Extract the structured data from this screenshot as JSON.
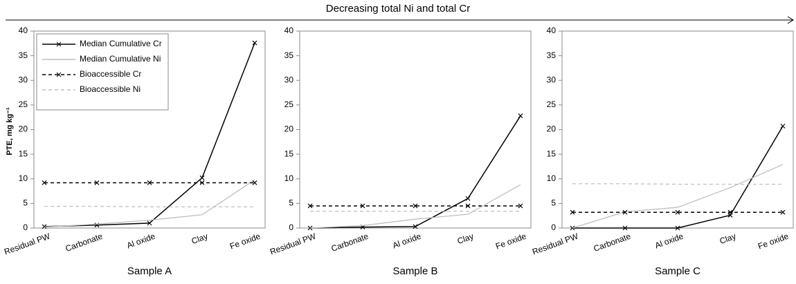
{
  "header": {
    "annotation": "Decreasing total Ni and total Cr"
  },
  "chart_data": [
    {
      "type": "line",
      "xlabel": "Sample A",
      "ylabel": "PTE, mg kg⁻¹",
      "legend": "upper left",
      "categories": [
        "Residual PW",
        "Carbonate",
        "Al oxide",
        "Clay",
        "Fe oxide"
      ],
      "ylim": [
        0,
        40
      ],
      "yticks": [
        0,
        5,
        10,
        15,
        20,
        25,
        30,
        35,
        40
      ],
      "series": [
        {
          "name": "Median Cumulative Cr",
          "color": "#000000",
          "dashed": false,
          "marker": "x",
          "values": [
            0.3,
            0.6,
            1.0,
            10.2,
            37.6
          ]
        },
        {
          "name": "Median Cumulative Ni",
          "color": "#bfbfbf",
          "dashed": false,
          "marker": "none",
          "values": [
            0.2,
            0.8,
            1.6,
            2.7,
            9.8
          ]
        },
        {
          "name": "Bioaccessible Cr",
          "color": "#000000",
          "dashed": true,
          "marker": "x",
          "values": [
            9.2,
            9.2,
            9.2,
            9.2,
            9.2
          ]
        },
        {
          "name": "Bioaccessible Ni",
          "color": "#bfbfbf",
          "dashed": true,
          "marker": "none",
          "values": [
            4.4,
            4.4,
            4.3,
            4.3,
            4.3
          ]
        }
      ]
    },
    {
      "type": "line",
      "xlabel": "Sample B",
      "categories": [
        "Residual PW",
        "Carbonate",
        "Al oxide",
        "Clay",
        "Fe oxide"
      ],
      "ylim": [
        0,
        40
      ],
      "yticks": [
        0,
        5,
        10,
        15,
        20,
        25,
        30,
        35,
        40
      ],
      "series": [
        {
          "color": "#000000",
          "dashed": false,
          "marker": "x",
          "values": [
            0,
            0.2,
            0.3,
            6.0,
            22.8
          ]
        },
        {
          "color": "#bfbfbf",
          "dashed": false,
          "marker": "none",
          "values": [
            0,
            0.5,
            1.8,
            2.8,
            8.8
          ]
        },
        {
          "color": "#000000",
          "dashed": true,
          "marker": "x",
          "values": [
            4.5,
            4.5,
            4.5,
            4.5,
            4.5
          ]
        },
        {
          "color": "#bfbfbf",
          "dashed": true,
          "marker": "none",
          "values": [
            3.4,
            3.4,
            3.4,
            3.4,
            3.4
          ]
        }
      ]
    },
    {
      "type": "line",
      "xlabel": "Sample C",
      "categories": [
        "Residual PW",
        "Carbonate",
        "Al oxide",
        "Clay",
        "Fe oxide"
      ],
      "ylim": [
        0,
        40
      ],
      "yticks": [
        0,
        5,
        10,
        15,
        20,
        25,
        30,
        35,
        40
      ],
      "series": [
        {
          "color": "#000000",
          "dashed": false,
          "marker": "x",
          "values": [
            0,
            0,
            0,
            2.6,
            20.7
          ]
        },
        {
          "color": "#bfbfbf",
          "dashed": false,
          "marker": "none",
          "values": [
            0,
            3.3,
            4.2,
            8.2,
            12.9
          ]
        },
        {
          "color": "#000000",
          "dashed": true,
          "marker": "x",
          "values": [
            3.2,
            3.2,
            3.2,
            3.2,
            3.2
          ]
        },
        {
          "color": "#bfbfbf",
          "dashed": true,
          "marker": "none",
          "values": [
            9.0,
            9.0,
            8.9,
            8.9,
            8.9
          ]
        }
      ]
    }
  ]
}
